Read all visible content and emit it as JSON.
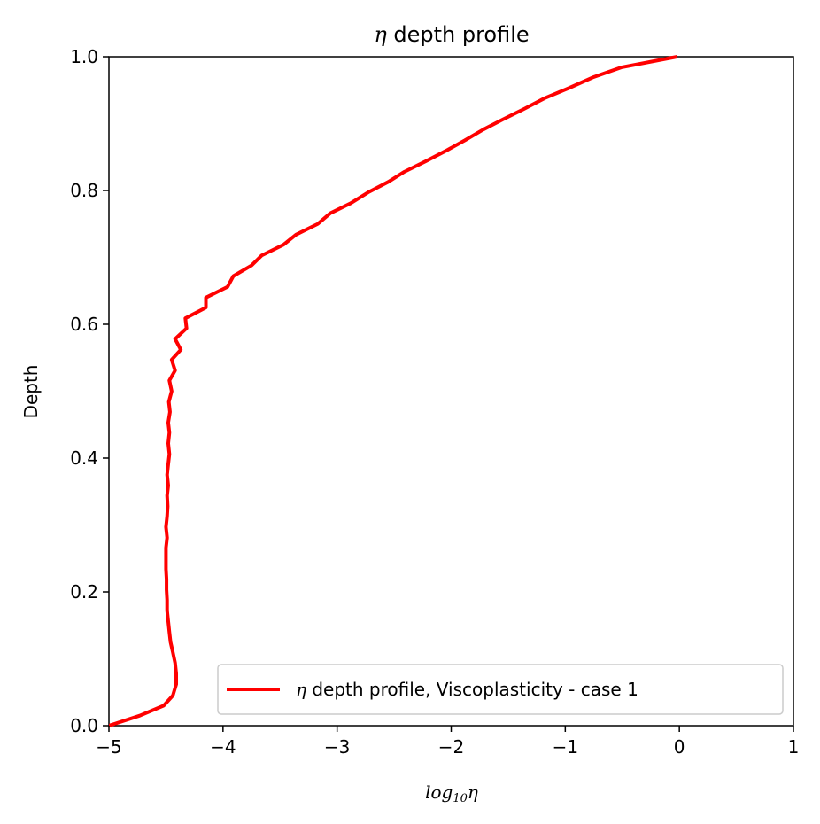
{
  "chart_data": {
    "type": "line",
    "title_symbol": "η",
    "title_text": " depth profile",
    "xlabel_main": "log",
    "xlabel_sub": "10",
    "xlabel_sym": "η",
    "ylabel": "Depth",
    "xlim": [
      -5,
      1
    ],
    "ylim": [
      0,
      1
    ],
    "xticks": [
      -5,
      -4,
      -3,
      -2,
      -1,
      0,
      1
    ],
    "xtick_labels": [
      "−5",
      "−4",
      "−3",
      "−2",
      "−1",
      "0",
      "1"
    ],
    "yticks": [
      0.0,
      0.2,
      0.4,
      0.6,
      0.8,
      1.0
    ],
    "ytick_labels": [
      "0.0",
      "0.2",
      "0.4",
      "0.6",
      "0.8",
      "1.0"
    ],
    "grid": false,
    "legend_placement": "lower-right",
    "series": [
      {
        "legend_symbol": "η",
        "legend_text": " depth profile, Viscoplasticity - case 1",
        "color": "#ff0000",
        "points": [
          [
            -5.0,
            0.0
          ],
          [
            -4.73,
            0.015
          ],
          [
            -4.52,
            0.03
          ],
          [
            -4.44,
            0.045
          ],
          [
            -4.41,
            0.062
          ],
          [
            -4.41,
            0.078
          ],
          [
            -4.42,
            0.094
          ],
          [
            -4.44,
            0.11
          ],
          [
            -4.46,
            0.125
          ],
          [
            -4.47,
            0.14
          ],
          [
            -4.48,
            0.156
          ],
          [
            -4.49,
            0.172
          ],
          [
            -4.49,
            0.188
          ],
          [
            -4.495,
            0.203
          ],
          [
            -4.495,
            0.219
          ],
          [
            -4.5,
            0.234
          ],
          [
            -4.5,
            0.25
          ],
          [
            -4.5,
            0.266
          ],
          [
            -4.49,
            0.281
          ],
          [
            -4.5,
            0.297
          ],
          [
            -4.49,
            0.313
          ],
          [
            -4.485,
            0.328
          ],
          [
            -4.49,
            0.344
          ],
          [
            -4.48,
            0.359
          ],
          [
            -4.49,
            0.375
          ],
          [
            -4.48,
            0.391
          ],
          [
            -4.47,
            0.406
          ],
          [
            -4.48,
            0.422
          ],
          [
            -4.47,
            0.438
          ],
          [
            -4.48,
            0.453
          ],
          [
            -4.465,
            0.469
          ],
          [
            -4.475,
            0.484
          ],
          [
            -4.45,
            0.5
          ],
          [
            -4.47,
            0.516
          ],
          [
            -4.42,
            0.531
          ],
          [
            -4.45,
            0.547
          ],
          [
            -4.37,
            0.562
          ],
          [
            -4.42,
            0.578
          ],
          [
            -4.32,
            0.594
          ],
          [
            -4.33,
            0.609
          ],
          [
            -4.15,
            0.625
          ],
          [
            -4.15,
            0.64
          ],
          [
            -3.96,
            0.656
          ],
          [
            -3.91,
            0.672
          ],
          [
            -3.75,
            0.688
          ],
          [
            -3.66,
            0.703
          ],
          [
            -3.47,
            0.719
          ],
          [
            -3.36,
            0.734
          ],
          [
            -3.17,
            0.75
          ],
          [
            -3.06,
            0.766
          ],
          [
            -2.88,
            0.781
          ],
          [
            -2.73,
            0.797
          ],
          [
            -2.55,
            0.813
          ],
          [
            -2.41,
            0.828
          ],
          [
            -2.22,
            0.844
          ],
          [
            -2.05,
            0.859
          ],
          [
            -1.88,
            0.875
          ],
          [
            -1.72,
            0.891
          ],
          [
            -1.55,
            0.906
          ],
          [
            -1.36,
            0.922
          ],
          [
            -1.18,
            0.938
          ],
          [
            -0.97,
            0.953
          ],
          [
            -0.76,
            0.969
          ],
          [
            -0.51,
            0.984
          ],
          [
            -0.02,
            1.0
          ]
        ]
      }
    ]
  }
}
